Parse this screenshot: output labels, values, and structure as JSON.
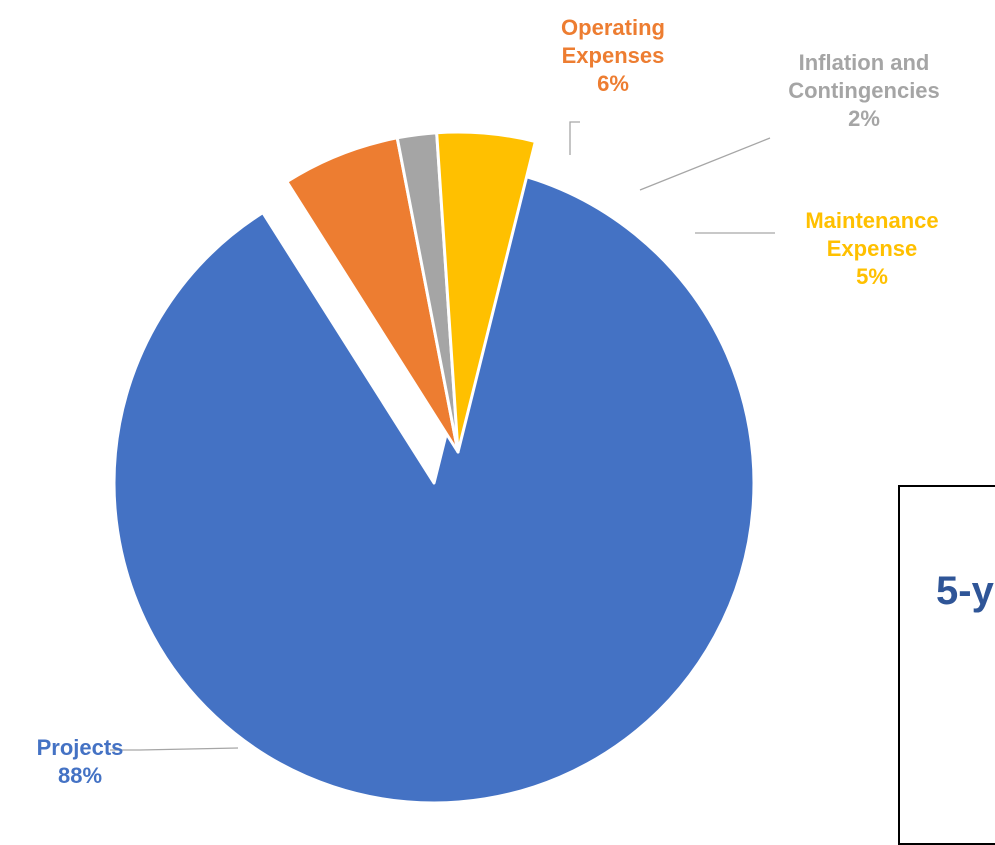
{
  "chart_data": {
    "type": "pie",
    "title": "",
    "exploded": true,
    "slices": [
      {
        "name": "Projects",
        "value": 88,
        "label": "88%",
        "color": "#4472C4"
      },
      {
        "name": "Operating Expenses",
        "value": 6,
        "label": "6%",
        "color": "#ED7D31"
      },
      {
        "name": "Inflation and Contingencies",
        "value": 2,
        "label": "2%",
        "color": "#A5A5A5"
      },
      {
        "name": "Maintenance Expense",
        "value": 5,
        "label": "5%",
        "color": "#FFC000"
      }
    ]
  },
  "callout": {
    "text": "5-y",
    "color": "#2F5597"
  }
}
